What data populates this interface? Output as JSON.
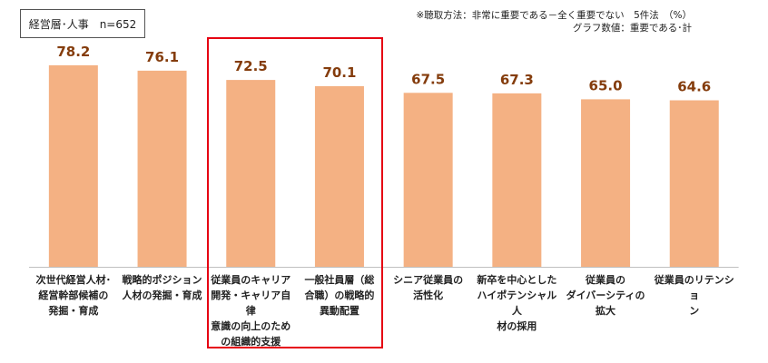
{
  "header": {
    "sample": "経営層･人事　n=652",
    "note_lines": [
      "※聴取方法：非常に重要である－全く重要でない　5件法　（%）",
      "グラフ数値：重要である･計"
    ]
  },
  "colors": {
    "bar": "#f4b183",
    "value": "#843c0c",
    "highlight": "#e60012",
    "axis": "#bfbfbf"
  },
  "chart_data": {
    "type": "bar",
    "title": "",
    "xlabel": "",
    "ylabel": "",
    "unit": "%",
    "ylim": [
      0,
      85
    ],
    "categories": [
      "次世代経営人材･\n経営幹部候補の\n発掘・育成",
      "戦略的ポジション\n人材の発掘・育成",
      "従業員のキャリア\n開発・キャリア自律\n意識の向上のため\nの組織的支援",
      "一般社員層（総\n合職）の戦略的\n異動配置",
      "シニア従業員の\n活性化",
      "新卒を中心とした\nハイポテンシャル人\n材の採用",
      "従業員の\nダイバーシティの\n拡大",
      "従業員のリテンショ\nン"
    ],
    "values": [
      78.2,
      76.1,
      72.5,
      70.1,
      67.5,
      67.3,
      65.0,
      64.6
    ],
    "value_labels": [
      "78.2",
      "76.1",
      "72.5",
      "70.1",
      "67.5",
      "67.3",
      "65.0",
      "64.6"
    ],
    "highlighted_categories": [
      2,
      3
    ]
  }
}
